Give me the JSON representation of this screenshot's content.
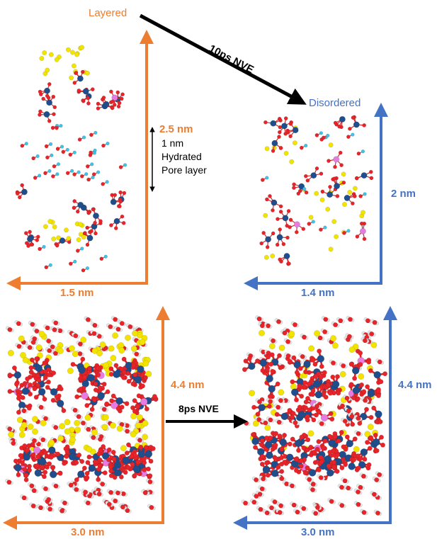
{
  "colors": {
    "orange": "#ED7D31",
    "blue": "#4472C4",
    "black": "#000000",
    "atom_silicon": "#1F4E8C",
    "atom_oxygen": "#E8242A",
    "atom_sodium": "#F2E400",
    "atom_hydrogen_cyan": "#3FC2E6",
    "atom_hydrogen_white": "#E6E6E6",
    "atom_aluminum": "#E77BE0",
    "bond": "#D22A2A"
  },
  "top": {
    "left_title": "Layered",
    "right_title": "Disordered",
    "transition_label": "10ps NVE",
    "left_height_label": "2.5 nm",
    "layer_annotation": [
      "1 nm",
      "Hydrated",
      "Pore layer"
    ],
    "left_width_label": "1.5 nm",
    "right_height_label": "2 nm",
    "right_width_label": "1.4 nm"
  },
  "bottom": {
    "transition_label": "8ps NVE",
    "left_height_label": "4.4 nm",
    "left_width_label": "3.0 nm",
    "right_height_label": "4.4 nm",
    "right_width_label": "3.0 nm"
  },
  "icons": [
    "layered-structure-icon",
    "disordered-structure-icon"
  ]
}
